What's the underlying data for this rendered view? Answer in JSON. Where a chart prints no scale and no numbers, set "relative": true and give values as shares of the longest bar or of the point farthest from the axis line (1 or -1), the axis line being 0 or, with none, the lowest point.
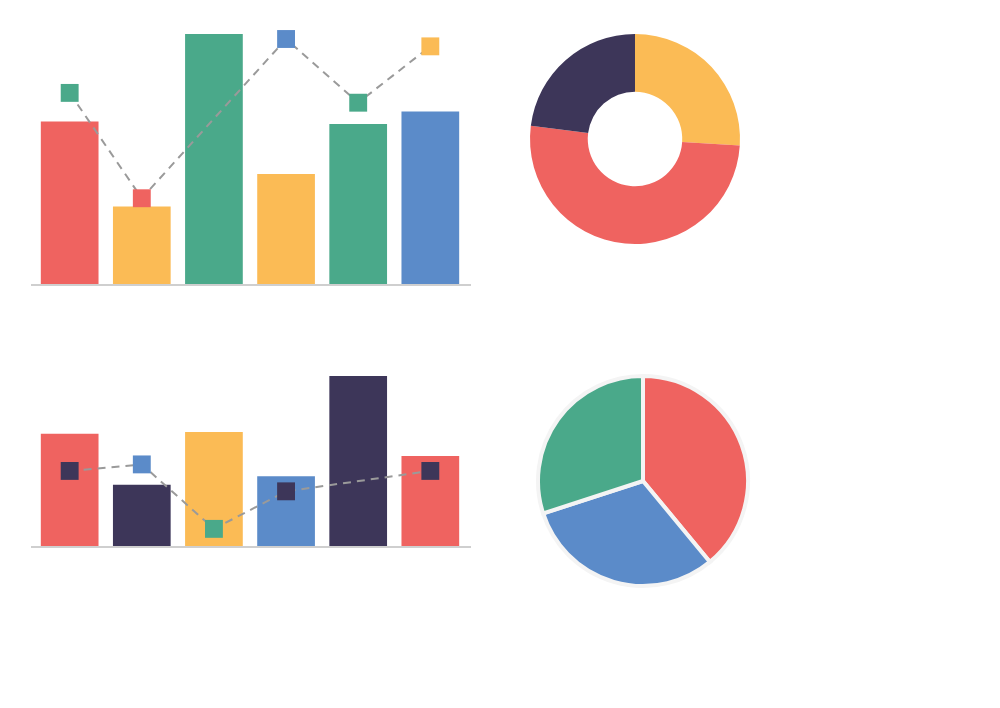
{
  "chart_data": [
    {
      "type": "bar",
      "relative": true,
      "categories": [
        null,
        null,
        null,
        null,
        null,
        null
      ],
      "values": [
        0.65,
        0.31,
        1,
        0.44,
        0.64,
        0.69
      ],
      "colors": [
        "#ef6360",
        "#fbbb55",
        "#4aa98a",
        "#fbbb55",
        "#4aa98a",
        "#5b8bc9"
      ]
    },
    {
      "type": "line",
      "relative": true,
      "categories": [
        null,
        null,
        null,
        null,
        null,
        null
      ],
      "color": "#9a9a9a",
      "line_style": "dashed",
      "marker": "square",
      "values": [
        0.78,
        0.35,
        null,
        1,
        0.74,
        0.97
      ],
      "colors": [
        "#4aa98a",
        "#ef6360",
        null,
        "#5b8bc9",
        "#4aa98a",
        "#fbbb55"
      ]
    },
    {
      "type": "donut",
      "categories": [
        null,
        null,
        null
      ],
      "values": [
        26,
        51,
        23
      ],
      "colors": [
        "#fbbb55",
        "#ef6360",
        "#3d3659"
      ]
    },
    {
      "type": "bar",
      "relative": true,
      "categories": [
        null,
        null,
        null,
        null,
        null,
        null
      ],
      "values": [
        0.66,
        0.36,
        0.67,
        0.41,
        1,
        0.53
      ],
      "colors": [
        "#ef6360",
        "#3d3659",
        "#fbbb55",
        "#5b8bc9",
        "#3d3659",
        "#ef6360"
      ]
    },
    {
      "type": "line",
      "relative": true,
      "categories": [
        null,
        null,
        null,
        null,
        null,
        null
      ],
      "color": "#9a9a9a",
      "line_style": "dashed",
      "marker": "square",
      "values": [
        0.92,
        1,
        0.21,
        0.67,
        null,
        0.92
      ],
      "colors": [
        "#3d3659",
        "#5b8bc9",
        "#4aa98a",
        "#3d3659",
        null,
        "#3d3659"
      ]
    },
    {
      "type": "pie",
      "categories": [
        null,
        null,
        null
      ],
      "values": [
        39,
        31,
        30
      ],
      "colors": [
        "#ef6360",
        "#5b8bc9",
        "#4aa98a"
      ]
    }
  ]
}
